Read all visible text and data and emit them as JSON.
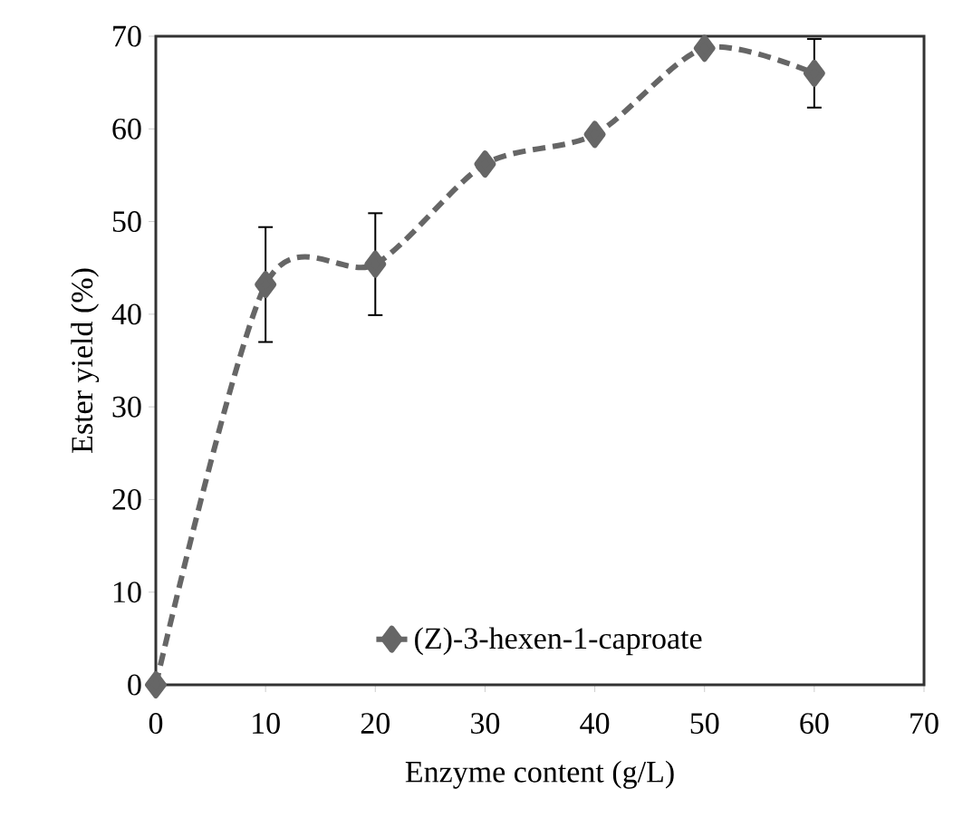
{
  "chart_data": {
    "type": "line",
    "xlabel": "Enzyme content (g/L)",
    "ylabel": "Ester yield (%)",
    "x": [
      0,
      10,
      20,
      30,
      40,
      50,
      60
    ],
    "series": [
      {
        "name": "(Z)-3-hexen-1-caproate",
        "color": "#666666",
        "values": [
          0,
          43.2,
          45.4,
          56.2,
          59.4,
          68.7,
          66
        ],
        "errors": [
          null,
          6.2,
          5.5,
          null,
          null,
          null,
          3.7
        ]
      }
    ],
    "xlim": [
      0,
      70
    ],
    "ylim": [
      0,
      70
    ],
    "xticks": [
      0,
      10,
      20,
      30,
      40,
      50,
      60,
      70
    ],
    "yticks": [
      0,
      10,
      20,
      30,
      40,
      50,
      60,
      70
    ],
    "marker": "diamond",
    "line_style": "dashed",
    "legend": "bottom",
    "grid": false
  }
}
